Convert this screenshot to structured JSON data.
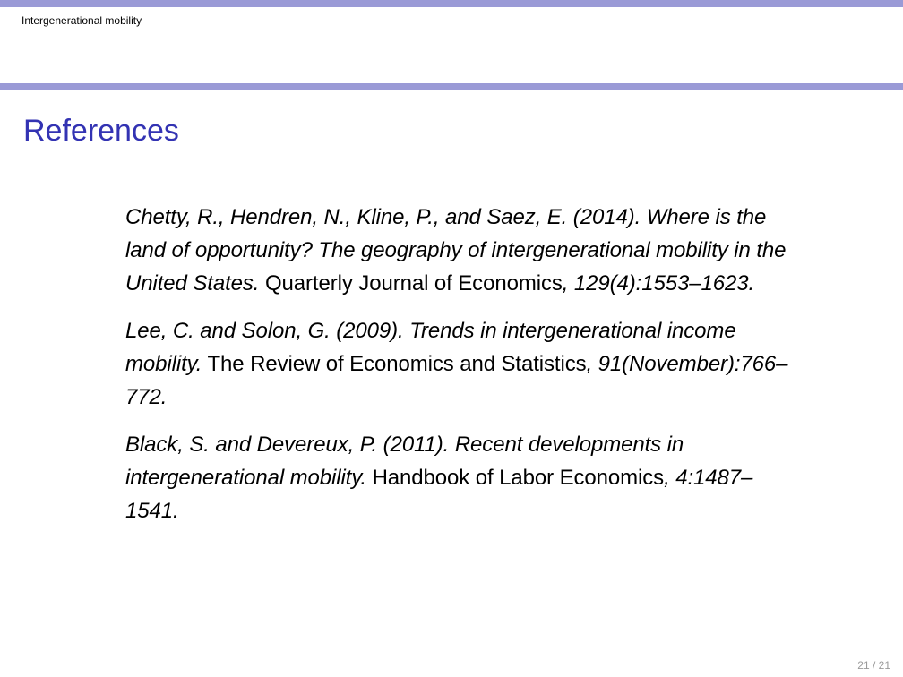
{
  "header": {
    "title": "Intergenerational mobility"
  },
  "frame": {
    "title": "References"
  },
  "references": [
    {
      "authors_year": "Chetty, R., Hendren, N., Kline, P., and Saez, E. (2014).",
      "title": "Where is the land of opportunity? The geography of intergenerational mobility in the United States.",
      "venue": "Quarterly Journal of Economics",
      "details": ", 129(4):1553–1623."
    },
    {
      "authors_year": "Lee, C. and Solon, G. (2009).",
      "title": "Trends in intergenerational income mobility.",
      "venue": "The Review of Economics and Statistics",
      "details": ", 91(November):766–772."
    },
    {
      "authors_year": "Black, S. and Devereux, P. (2011).",
      "title": "Recent developments in intergenerational mobility.",
      "venue": "Handbook of Labor Economics",
      "details": ", 4:1487–1541."
    }
  ],
  "footer": {
    "page_number": "21 / 21"
  },
  "colors": {
    "rule": "#9a9ad6",
    "title": "#3333b3",
    "page_number": "#9a9a9a"
  }
}
